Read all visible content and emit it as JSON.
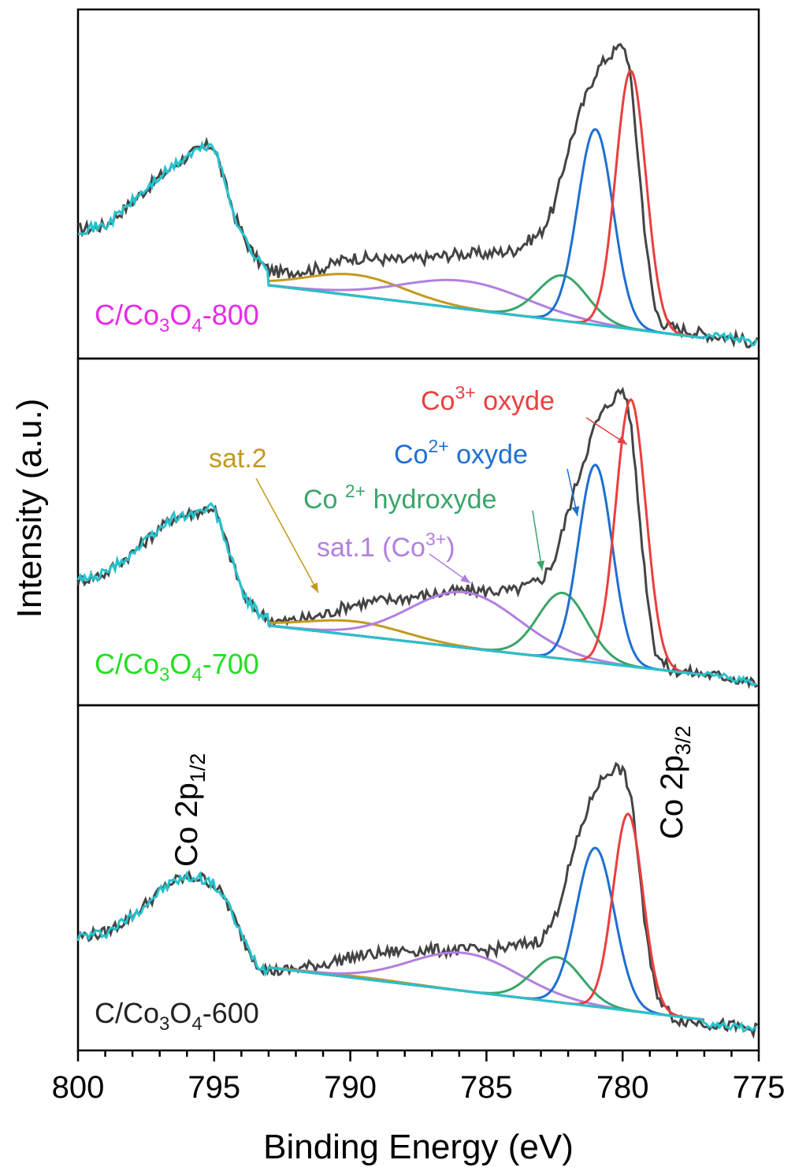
{
  "chart_data": {
    "type": "line",
    "xlabel": "Binding Energy (eV)",
    "ylabel": "Intensity (a.u.)",
    "xlim": [
      800,
      775
    ],
    "x_ticks": [
      "800",
      "795",
      "790",
      "785",
      "780",
      "775"
    ],
    "x_tick_values": [
      800,
      795,
      790,
      785,
      780,
      775
    ],
    "grid": false,
    "colors": {
      "raw": "#444444",
      "co3": "#e8403f",
      "co2": "#1f6fd1",
      "co2hyd": "#3aa66a",
      "sat1": "#b27fe0",
      "sat2": "#c39a1f",
      "bg": "#27c2cc"
    },
    "panels": [
      {
        "sample_pre": "C/Co",
        "sample_sub1": "3",
        "sample_mid": "O",
        "sample_sub2": "4",
        "sample_post": "-800",
        "label_color": "#e82ae8",
        "ylim": [
          0,
          1
        ],
        "baseline": {
          "start": 0.21,
          "end": 0.04
        },
        "raw_x": [
          800,
          799,
          798,
          797,
          796.5,
          796,
          795.5,
          795.2,
          795,
          794.6,
          794.2,
          793.8,
          793.4,
          793,
          792.5,
          791,
          790,
          789,
          788,
          787,
          786,
          785,
          784,
          783,
          782.5,
          782,
          781.5,
          781,
          780.6,
          780.3,
          780,
          779.8,
          779.6,
          779.4,
          779.2,
          779,
          778.8,
          778.5,
          778.2,
          778,
          777.5,
          777,
          776.5,
          776,
          775.5,
          775
        ],
        "raw_y": [
          0.37,
          0.38,
          0.45,
          0.52,
          0.55,
          0.58,
          0.6,
          0.61,
          0.61,
          0.5,
          0.4,
          0.33,
          0.28,
          0.255,
          0.245,
          0.26,
          0.29,
          0.285,
          0.28,
          0.29,
          0.3,
          0.3,
          0.31,
          0.36,
          0.44,
          0.6,
          0.72,
          0.82,
          0.86,
          0.88,
          0.9,
          0.86,
          0.72,
          0.55,
          0.38,
          0.24,
          0.14,
          0.1,
          0.09,
          0.085,
          0.08,
          0.07,
          0.065,
          0.06,
          0.05,
          0.045
        ],
        "peaks": [
          {
            "id": "sat2",
            "center": 789.8,
            "height": 0.06,
            "width": 1.8
          },
          {
            "id": "sat1",
            "center": 785.8,
            "height": 0.08,
            "width": 2.3
          },
          {
            "id": "co2hyd",
            "center": 782.2,
            "height": 0.13,
            "width": 0.9
          },
          {
            "id": "co2",
            "center": 781.0,
            "height": 0.56,
            "width": 0.65
          },
          {
            "id": "co3",
            "center": 779.7,
            "height": 0.74,
            "width": 0.55
          }
        ]
      },
      {
        "sample_pre": "C/Co",
        "sample_sub1": "3",
        "sample_mid": "O",
        "sample_sub2": "4",
        "sample_post": "-700",
        "label_color": "#22e022",
        "ylim": [
          0,
          1
        ],
        "baseline": {
          "start": 0.23,
          "end": 0.07
        },
        "raw_x": [
          800,
          799,
          798,
          797,
          796.5,
          796,
          795.5,
          795.2,
          795,
          794.6,
          794.2,
          793.8,
          793.4,
          793,
          792.5,
          791,
          790,
          789,
          788,
          787,
          786,
          785,
          784,
          783,
          782.5,
          782,
          781.5,
          781,
          780.6,
          780.3,
          780,
          779.8,
          779.6,
          779.4,
          779.2,
          779,
          778.8,
          778.5,
          778.2,
          778,
          777.5,
          777,
          776.5,
          776,
          775.5,
          775
        ],
        "raw_y": [
          0.36,
          0.38,
          0.44,
          0.51,
          0.54,
          0.55,
          0.56,
          0.57,
          0.57,
          0.48,
          0.38,
          0.3,
          0.27,
          0.25,
          0.24,
          0.26,
          0.29,
          0.3,
          0.31,
          0.32,
          0.33,
          0.33,
          0.33,
          0.36,
          0.42,
          0.56,
          0.69,
          0.81,
          0.86,
          0.89,
          0.91,
          0.87,
          0.74,
          0.56,
          0.4,
          0.26,
          0.16,
          0.12,
          0.1,
          0.1,
          0.095,
          0.09,
          0.085,
          0.08,
          0.07,
          0.06
        ],
        "peaks": [
          {
            "id": "sat2",
            "center": 789.8,
            "height": 0.04,
            "width": 1.8
          },
          {
            "id": "sat1",
            "center": 785.8,
            "height": 0.16,
            "width": 2.0
          },
          {
            "id": "co2hyd",
            "center": 782.2,
            "height": 0.19,
            "width": 0.9
          },
          {
            "id": "co2",
            "center": 781.0,
            "height": 0.57,
            "width": 0.62
          },
          {
            "id": "co3",
            "center": 779.7,
            "height": 0.77,
            "width": 0.55
          }
        ],
        "annotations": [
          {
            "id": "sat2",
            "text": "sat.2"
          },
          {
            "id": "sat1",
            "text_pre": "sat.1 (Co",
            "sup": "3+",
            "text_post": ")"
          },
          {
            "id": "co2hyd",
            "text_pre": "Co ",
            "sup": "2+",
            "text_post": " hydroxyde"
          },
          {
            "id": "co2",
            "text_pre": "Co",
            "sup": "2+",
            "text_post": "  oxyde"
          },
          {
            "id": "co3",
            "text_pre": "Co",
            "sup": "3+",
            "text_post": " oxyde"
          }
        ]
      },
      {
        "sample_pre": "C/Co",
        "sample_sub1": "3",
        "sample_mid": "O",
        "sample_sub2": "4",
        "sample_post": "-600",
        "label_color": "#222222",
        "ylim": [
          0,
          1
        ],
        "baseline": {
          "start": 0.24,
          "end": 0.07
        },
        "raw_x": [
          800,
          799,
          798,
          797,
          796.5,
          796,
          795.5,
          795.2,
          795,
          794.6,
          794.2,
          793.8,
          793.4,
          793,
          792.5,
          791,
          790,
          789,
          788,
          787,
          786,
          785,
          784,
          783,
          782.5,
          782,
          781.5,
          781,
          780.6,
          780.3,
          780,
          779.8,
          779.6,
          779.4,
          779.2,
          779,
          778.8,
          778.5,
          778.2,
          778,
          777.5,
          777,
          776.5,
          776,
          775.5,
          775
        ],
        "raw_y": [
          0.33,
          0.34,
          0.39,
          0.46,
          0.49,
          0.5,
          0.5,
          0.49,
          0.48,
          0.44,
          0.37,
          0.3,
          0.25,
          0.23,
          0.23,
          0.25,
          0.27,
          0.28,
          0.29,
          0.29,
          0.29,
          0.29,
          0.3,
          0.32,
          0.38,
          0.52,
          0.65,
          0.76,
          0.8,
          0.82,
          0.81,
          0.77,
          0.68,
          0.54,
          0.38,
          0.26,
          0.18,
          0.13,
          0.1,
          0.09,
          0.085,
          0.08,
          0.075,
          0.07,
          0.065,
          0.06
        ],
        "peaks": [
          {
            "id": "sat2",
            "center": 789.8,
            "height": 0.005,
            "width": 1.8
          },
          {
            "id": "sat1",
            "center": 785.8,
            "height": 0.11,
            "width": 2.0
          },
          {
            "id": "co2hyd",
            "center": 782.4,
            "height": 0.13,
            "width": 0.9
          },
          {
            "id": "co2",
            "center": 781.0,
            "height": 0.46,
            "width": 0.7
          },
          {
            "id": "co3",
            "center": 779.8,
            "height": 0.57,
            "width": 0.55
          }
        ],
        "annotations": [
          {
            "id": "co2p12",
            "text_pre": "Co 2p",
            "sub": "1/2"
          },
          {
            "id": "co2p32",
            "text_pre": "Co 2p",
            "sub": "3/2"
          }
        ]
      }
    ]
  }
}
